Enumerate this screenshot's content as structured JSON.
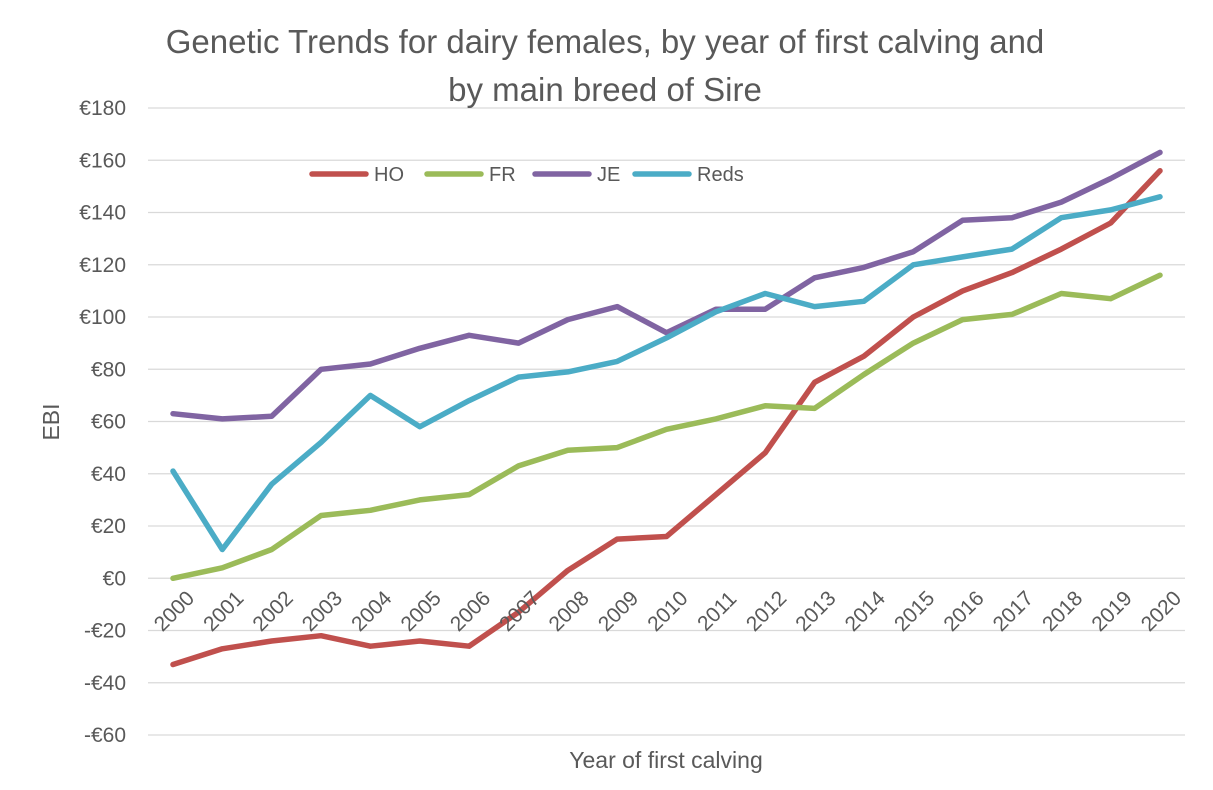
{
  "chart_data": {
    "type": "line",
    "title_lines": [
      "Genetic Trends for dairy females, by year of first calving and",
      "by main breed of Sire"
    ],
    "xlabel": "Year of first calving",
    "ylabel": "EBI",
    "categories": [
      "2000",
      "2001",
      "2002",
      "2003",
      "2004",
      "2005",
      "2006",
      "2007",
      "2008",
      "2009",
      "2010",
      "2011",
      "2012",
      "2013",
      "2014",
      "2015",
      "2016",
      "2017",
      "2018",
      "2019",
      "2020"
    ],
    "ylim": [
      -60,
      180
    ],
    "yticks": [
      180,
      160,
      140,
      120,
      100,
      80,
      60,
      40,
      20,
      0,
      -20,
      -40,
      -60
    ],
    "ytick_labels": [
      "€180",
      "€160",
      "€140",
      "€120",
      "€100",
      "€80",
      "€60",
      "€40",
      "€20",
      "€0",
      "-€20",
      "-€40",
      "-€60"
    ],
    "grid": true,
    "legend_position": "top",
    "series": [
      {
        "name": "HO",
        "color": "#c0504d",
        "values": [
          -33,
          -27,
          -24,
          -22,
          -26,
          -24,
          -26,
          -13,
          3,
          15,
          16,
          32,
          48,
          75,
          85,
          100,
          110,
          117,
          126,
          136,
          156
        ]
      },
      {
        "name": "FR",
        "color": "#9bbb59",
        "values": [
          0,
          4,
          11,
          24,
          26,
          30,
          32,
          43,
          49,
          50,
          57,
          61,
          66,
          65,
          78,
          90,
          99,
          101,
          109,
          107,
          116
        ]
      },
      {
        "name": "JE",
        "color": "#8064a2",
        "values": [
          63,
          61,
          62,
          80,
          82,
          88,
          93,
          90,
          99,
          104,
          94,
          103,
          103,
          115,
          119,
          125,
          137,
          138,
          144,
          153,
          163
        ]
      },
      {
        "name": "Reds",
        "color": "#4bacc6",
        "values": [
          41,
          11,
          36,
          52,
          70,
          58,
          68,
          77,
          79,
          83,
          92,
          102,
          109,
          104,
          106,
          120,
          123,
          126,
          138,
          141,
          146
        ]
      }
    ]
  }
}
